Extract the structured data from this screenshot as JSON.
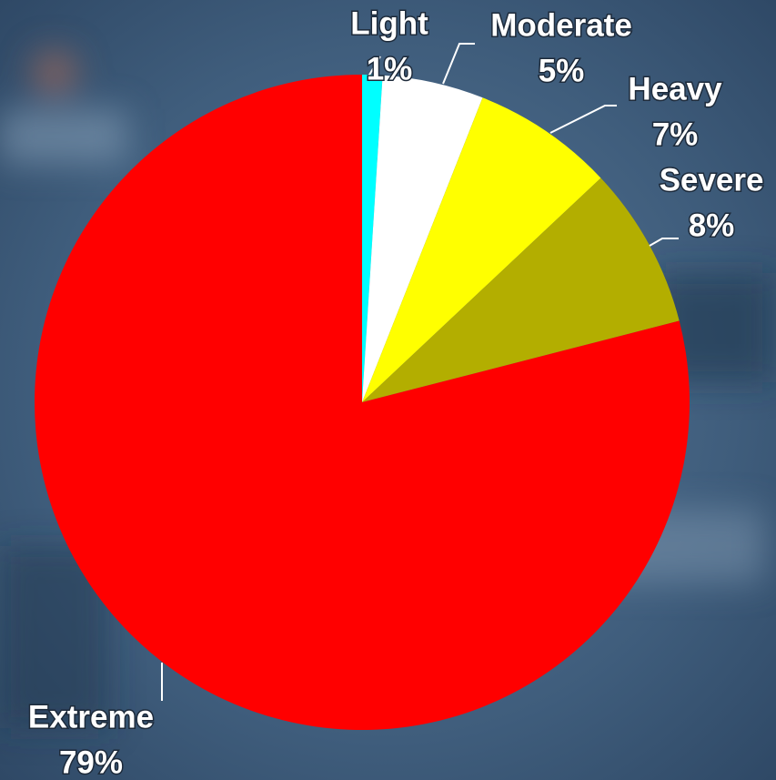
{
  "chart_data": {
    "type": "pie",
    "categories": [
      "Light",
      "Moderate",
      "Heavy",
      "Severe",
      "Extreme"
    ],
    "values": [
      1,
      5,
      7,
      8,
      79
    ],
    "value_labels": [
      "1%",
      "5%",
      "7%",
      "8%",
      "79%"
    ],
    "colors": [
      "#00ffff",
      "#ffffff",
      "#ffff00",
      "#b3ae00",
      "#ff0000"
    ]
  }
}
